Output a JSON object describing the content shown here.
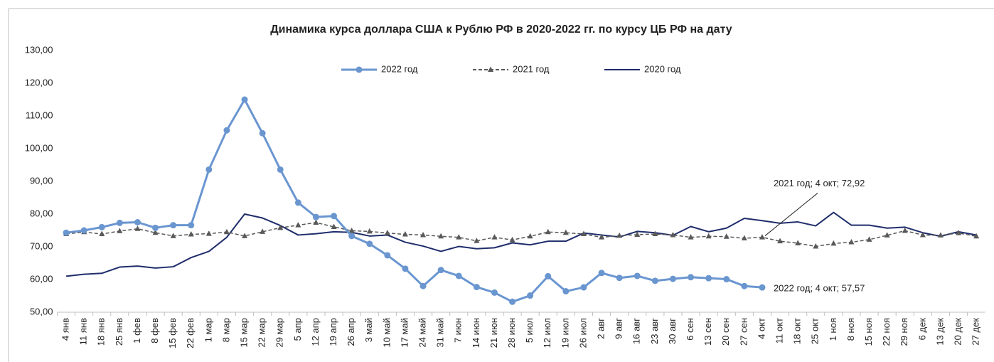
{
  "chart_data": {
    "type": "line",
    "title": "Динамика курса доллара США к Рублю РФ в 2020-2022 гг. по курсу ЦБ РФ на дату",
    "categories": [
      "4 янв",
      "11 янв",
      "18 янв",
      "25 янв",
      "1 фев",
      "8 фев",
      "15 фев",
      "22 фев",
      "1 мар",
      "8 мар",
      "15 мар",
      "22 мар",
      "29 мар",
      "5 апр",
      "12 апр",
      "19 апр",
      "26 апр",
      "3 май",
      "10 май",
      "17 май",
      "24 май",
      "31 май",
      "7 июн",
      "14 июн",
      "21 июн",
      "28 июн",
      "5 июл",
      "12 июл",
      "19 июл",
      "26 июл",
      "2 авг",
      "9 авг",
      "16 авг",
      "23 авг",
      "30 авг",
      "6 сен",
      "13 сен",
      "20 сен",
      "27 сен",
      "4 окт",
      "11 окт",
      "18 окт",
      "25 окт",
      "1 ноя",
      "8 ноя",
      "15 ноя",
      "22 ноя",
      "29 ноя",
      "6 дек",
      "13 дек",
      "20 дек",
      "27 дек"
    ],
    "series": [
      {
        "name": "2022 год",
        "color": "#6a96d0",
        "marker": "circle",
        "dash": false,
        "values": [
          74.3,
          75.0,
          76.0,
          77.3,
          77.5,
          75.8,
          76.6,
          76.6,
          93.6,
          105.6,
          115.0,
          104.7,
          93.6,
          83.5,
          79.1,
          79.4,
          73.3,
          70.9,
          67.4,
          63.3,
          58.0,
          62.9,
          61.1,
          57.7,
          56.0,
          53.2,
          55.1,
          61.0,
          56.4,
          57.6,
          62.0,
          60.5,
          61.1,
          59.6,
          60.2,
          60.7,
          60.4,
          60.1,
          58.0,
          57.57,
          null,
          null,
          null,
          null,
          null,
          null,
          null,
          null,
          null,
          null,
          null,
          null
        ],
        "value_labels": [
          null,
          null,
          null,
          null,
          null,
          null,
          null,
          null,
          null,
          null,
          null,
          null,
          null,
          null,
          null,
          null,
          null,
          null,
          null,
          null,
          null,
          null,
          null,
          null,
          null,
          null,
          null,
          null,
          null,
          null,
          null,
          null,
          null,
          null,
          null,
          null,
          null,
          null,
          null,
          "2022 год; 4 окт; 57,57",
          null,
          null,
          null,
          null,
          null,
          null,
          null,
          null,
          null,
          null,
          null,
          null
        ]
      },
      {
        "name": "2021 год",
        "color": "#595959",
        "marker": "triangle",
        "dash": true,
        "values": [
          73.9,
          74.5,
          73.9,
          74.8,
          75.5,
          74.3,
          73.3,
          73.8,
          74.0,
          74.5,
          73.3,
          74.6,
          75.8,
          76.6,
          77.4,
          76.1,
          74.9,
          74.7,
          74.2,
          73.8,
          73.6,
          73.2,
          72.9,
          71.8,
          72.9,
          72.1,
          73.2,
          74.5,
          74.3,
          73.9,
          72.9,
          73.4,
          73.7,
          73.9,
          73.6,
          72.9,
          73.2,
          73.1,
          72.6,
          72.92,
          71.7,
          71.1,
          70.1,
          71.0,
          71.4,
          72.2,
          73.5,
          74.9,
          73.6,
          73.5,
          74.2,
          73.2
        ],
        "value_labels": [
          null,
          null,
          null,
          null,
          null,
          null,
          null,
          null,
          null,
          null,
          null,
          null,
          null,
          null,
          null,
          null,
          null,
          null,
          null,
          null,
          null,
          null,
          null,
          null,
          null,
          null,
          null,
          null,
          null,
          null,
          null,
          null,
          null,
          null,
          null,
          null,
          null,
          null,
          null,
          "2021 год; 4 окт; 72,92",
          null,
          null,
          null,
          null,
          null,
          null,
          null,
          null,
          null,
          null,
          null,
          null
        ]
      },
      {
        "name": "2020 год",
        "color": "#1f2d6b",
        "marker": "none",
        "dash": false,
        "values": [
          61.0,
          61.6,
          61.9,
          63.8,
          64.1,
          63.5,
          63.9,
          66.7,
          68.6,
          72.9,
          80.0,
          78.8,
          76.5,
          73.6,
          74.0,
          74.6,
          74.4,
          73.3,
          73.6,
          71.4,
          70.2,
          68.6,
          70.1,
          69.4,
          69.7,
          71.2,
          70.6,
          71.7,
          71.7,
          74.2,
          73.6,
          73.0,
          74.7,
          74.3,
          73.5,
          76.2,
          74.6,
          75.7,
          78.7,
          78.0,
          77.2,
          77.6,
          76.4,
          80.5,
          76.6,
          76.6,
          75.7,
          76.0,
          74.3,
          73.2,
          74.6,
          73.6
        ]
      }
    ],
    "ylim": [
      50,
      130
    ],
    "yticks": [
      {
        "value": 50,
        "label": "50,00"
      },
      {
        "value": 60,
        "label": "60,00"
      },
      {
        "value": 70,
        "label": "70,00"
      },
      {
        "value": 80,
        "label": "80,00"
      },
      {
        "value": 90,
        "label": "90,00"
      },
      {
        "value": 100,
        "label": "100,00"
      },
      {
        "value": 110,
        "label": "110,00"
      },
      {
        "value": 120,
        "label": "120,00"
      },
      {
        "value": 130,
        "label": "130,00"
      }
    ],
    "grid": false,
    "legend": "top"
  }
}
